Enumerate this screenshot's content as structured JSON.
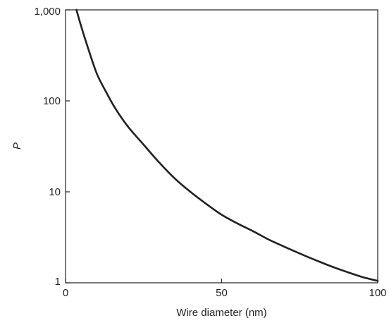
{
  "chart_data": {
    "type": "line",
    "title": "",
    "xlabel": "Wire diameter (nm)",
    "ylabel": "P",
    "xlim": [
      0,
      100
    ],
    "ylim": [
      1,
      1000
    ],
    "yscale": "log",
    "grid": false,
    "x_ticks": [
      {
        "value": 0,
        "label": "0"
      },
      {
        "value": 50,
        "label": "50"
      },
      {
        "value": 100,
        "label": "100"
      }
    ],
    "y_ticks": [
      {
        "value": 1,
        "label": "1"
      },
      {
        "value": 10,
        "label": "10"
      },
      {
        "value": 100,
        "label": "100"
      },
      {
        "value": 1000,
        "label": "1,000"
      }
    ],
    "series": [
      {
        "color": "#231f20",
        "x": [
          3.5,
          5,
          7,
          10,
          13,
          16,
          20,
          25,
          30,
          35,
          40,
          45,
          50,
          55,
          60,
          65,
          70,
          75,
          80,
          85,
          90,
          95,
          100
        ],
        "y": [
          1000,
          660,
          400,
          200,
          125,
          82,
          52,
          33,
          21,
          14,
          10,
          7.4,
          5.6,
          4.5,
          3.7,
          3.0,
          2.5,
          2.1,
          1.78,
          1.52,
          1.32,
          1.16,
          1.05
        ]
      }
    ]
  }
}
